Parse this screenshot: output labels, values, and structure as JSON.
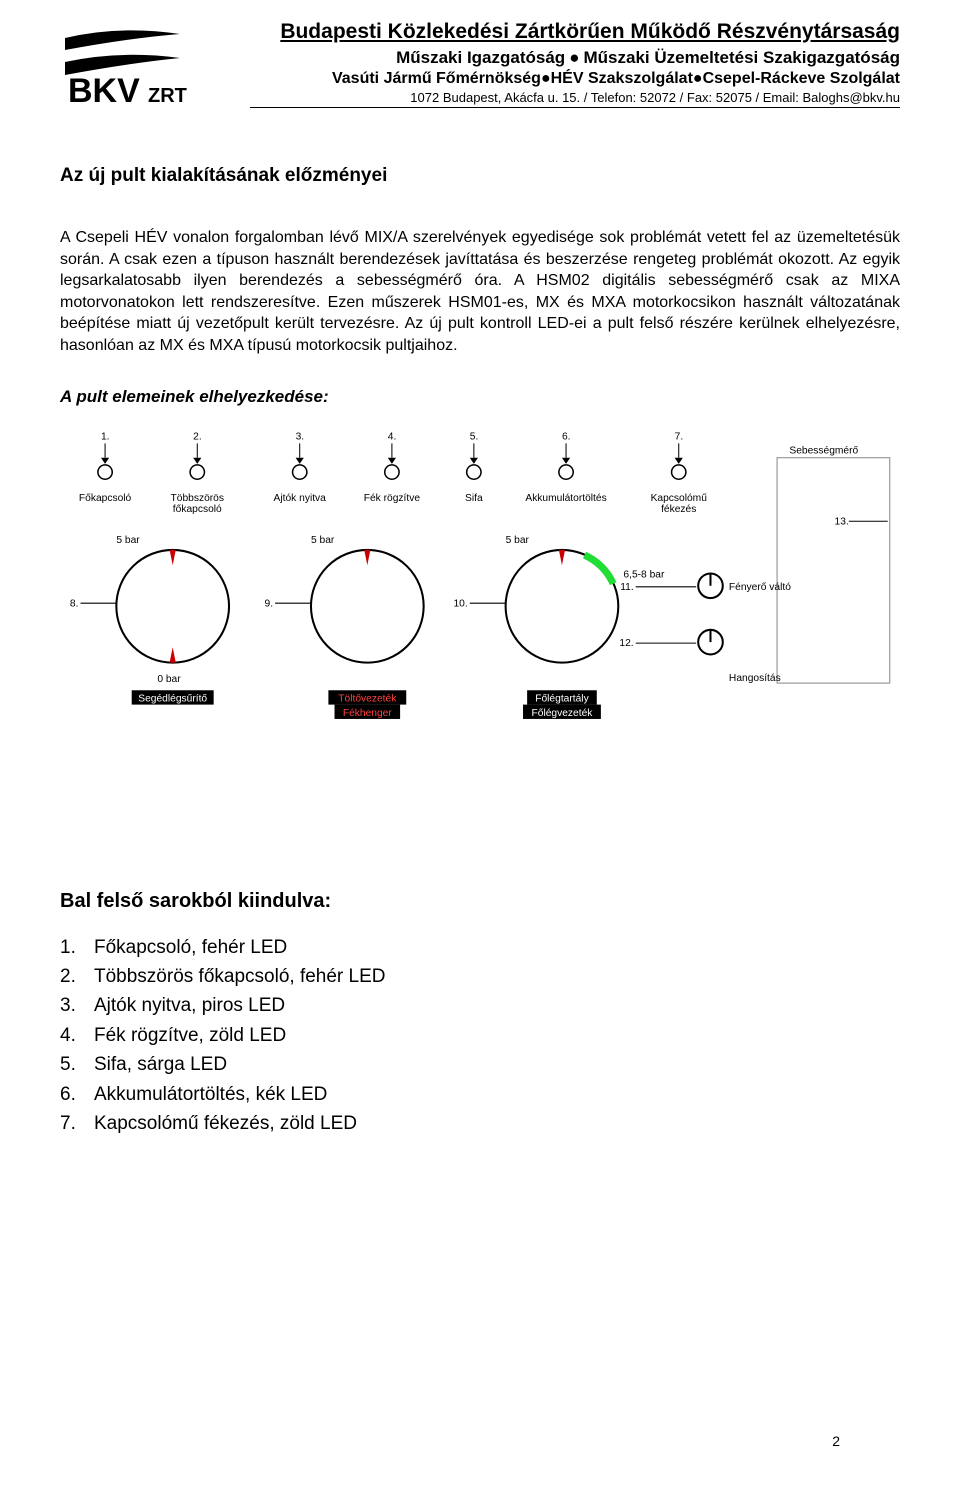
{
  "header": {
    "company": "Budapesti Közlekedési Zártkörűen Működő Részvénytársaság",
    "dept1a": "Műszaki Igazgatóság",
    "dept1b": "Műszaki Üzemeltetési Szakigazgatóság",
    "dept2a": "Vasúti Jármű Főmérnökség",
    "dept2b": "HÉV Szakszolgálat",
    "dept2c": "Csepel-Ráckeve Szolgálat",
    "address": "1072 Budapest, Akácfa u. 15. / Telefon: 52072 / Fax: 52075 / Email: Baloghs@bkv.hu",
    "logo_text": "BKV",
    "logo_suffix": "ZRT"
  },
  "title": "Az új pult kialakításának előzményei",
  "paragraph": "A Csepeli HÉV vonalon forgalomban lévő MIX/A szerelvények egyedisége sok problémát vetett fel az üzemeltetésük során. A csak ezen a típuson használt berendezések javíttatása és beszerzése rengeteg problémát okozott. Az egyik legsarkalatosabb ilyen berendezés a sebességmérő óra. A HSM02 digitális sebességmérő csak az MIXA motorvonatokon lett rendszeresítve. Ezen műszerek HSM01-es, MX és MXA motorkocsikon használt változatának beépítése miatt új vezetőpult került tervezésre. Az új pult kontroll LED-ei a pult felső részére kerülnek elhelyezésre, hasonlóan az MX és MXA típusú motorkocsik pultjaihoz.",
  "diagram_title": "A pult elemeinek elhelyezkedése:",
  "diagram": {
    "top_labels": [
      "Főkapcsoló",
      "Többszörös\nfőkapcsoló",
      "Ajtók nyitva",
      "Fék rögzítve",
      "Sifa",
      "Akkumulátortöltés",
      "Kapcsolómű\nfékezés"
    ],
    "top_numbers": [
      "1.",
      "2.",
      "3.",
      "4.",
      "5.",
      "6.",
      "7."
    ],
    "side_label": "Sebességmérő",
    "gauge_top": "5 bar",
    "gauge_bot_left": "0 bar",
    "gauge1_label": "Segédlégsűrítő",
    "gauge2_label1": "Töltővezeték",
    "gauge2_label2": "Fékhenger",
    "gauge3_label1": "Főlégtartály",
    "gauge3_label2": "Főlégvezeték",
    "gauge3_marker": "6,5-8 bar",
    "gauge_nums": [
      "8.",
      "9.",
      "10.",
      "11.",
      "12.",
      "13."
    ],
    "knob_labels": [
      "Fényerő váltó",
      "Hangosítás"
    ],
    "colors": {
      "bg": "#ffffff",
      "line": "#000000",
      "inv_bg": "#000000",
      "inv_red": "#cc0000",
      "arrow_red": "#ee1111",
      "arrow_green": "#22dd33",
      "box_stroke": "#888888"
    }
  },
  "legend_title": "Bal felső sarokból kiindulva:",
  "legend": [
    {
      "n": "1.",
      "t": "Főkapcsoló, fehér LED"
    },
    {
      "n": "2.",
      "t": "Többszörös főkapcsoló, fehér LED"
    },
    {
      "n": "3.",
      "t": " Ajtók nyitva, piros LED"
    },
    {
      "n": "4.",
      "t": " Fék rögzítve, zöld LED"
    },
    {
      "n": "5.",
      "t": "Sifa, sárga LED"
    },
    {
      "n": "6.",
      "t": "Akkumulátortöltés, kék LED"
    },
    {
      "n": "7.",
      "t": "Kapcsolómű fékezés, zöld LED"
    }
  ],
  "page_number": "2"
}
